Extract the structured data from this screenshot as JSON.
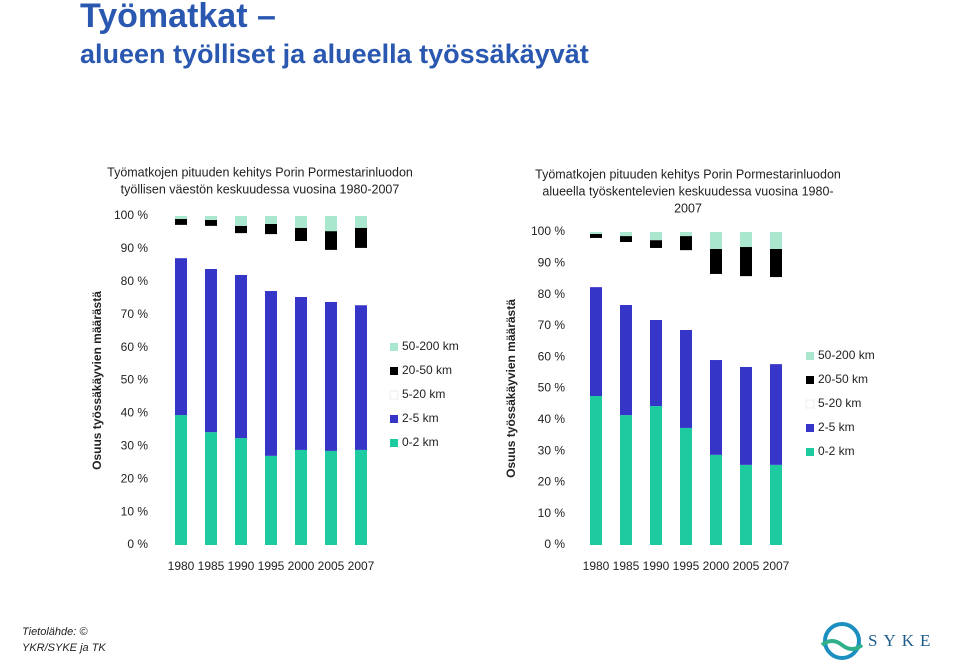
{
  "slide": {
    "title": [
      "Työmatkat –",
      "alueen työlliset ja alueella työssäkäyvät"
    ],
    "source": [
      "Tietolähde: ©",
      "YKR/SYKE ja TK"
    ],
    "logo": "SYKE"
  },
  "chart_data": [
    {
      "type": "stacked-bar",
      "title": [
        "Työmatkojen pituuden kehitys Porin Pormestarinluodon",
        "työllisen väestön keskuudessa vuosina 1980-2007"
      ],
      "y_label": "Osuus työssäkäyvien määrästä",
      "categories": [
        "1980",
        "1985",
        "1990",
        "1995",
        "2000",
        "2005",
        "2007"
      ],
      "ylim": [
        0,
        100
      ],
      "yticks": [
        {
          "value": 0,
          "label": "0 %"
        },
        {
          "value": 10,
          "label": "10 %"
        },
        {
          "value": 20,
          "label": "20 %"
        },
        {
          "value": 30,
          "label": "30 %"
        },
        {
          "value": 40,
          "label": "40 %"
        },
        {
          "value": 50,
          "label": "50 %"
        },
        {
          "value": 60,
          "label": "60 %"
        },
        {
          "value": 70,
          "label": "70 %"
        },
        {
          "value": 80,
          "label": "80 %"
        },
        {
          "value": 90,
          "label": "90 %"
        },
        {
          "value": 100,
          "label": "100 %"
        }
      ],
      "series": [
        {
          "name": "0-2 km",
          "color": "#1ecba0",
          "values": [
            39.5,
            34.3,
            32.5,
            27.1,
            28.9,
            28.6,
            28.9
          ]
        },
        {
          "name": "2-5 km",
          "color": "#3535c8",
          "values": [
            47.7,
            49.6,
            49.6,
            50.1,
            46.5,
            45.3,
            44.0
          ]
        },
        {
          "name": "5-20 km",
          "color": "#ffffff",
          "values": [
            10.1,
            13.1,
            12.7,
            17.3,
            17.0,
            15.8,
            17.4
          ]
        },
        {
          "name": "20-50 km",
          "color": "#000000",
          "values": [
            1.8,
            1.8,
            2.2,
            3.1,
            4.0,
            5.7,
            6.1
          ]
        },
        {
          "name": "50-200 km",
          "color": "#a9e7cf",
          "values": [
            0.9,
            1.2,
            3.0,
            2.4,
            3.6,
            4.6,
            3.6
          ]
        }
      ]
    },
    {
      "type": "stacked-bar",
      "title": [
        "Työmatkojen pituuden kehitys Porin Pormestarinluodon",
        "alueella työskentelevien keskuudessa vuosina 1980-",
        "2007"
      ],
      "y_label": "Osuus työssäkäyvien määrästä",
      "categories": [
        "1980",
        "1985",
        "1990",
        "1995",
        "2000",
        "2005",
        "2007"
      ],
      "ylim": [
        0,
        100
      ],
      "yticks": [
        {
          "value": 0,
          "label": "0 %"
        },
        {
          "value": 10,
          "label": "10 %"
        },
        {
          "value": 20,
          "label": "20 %"
        },
        {
          "value": 30,
          "label": "30 %"
        },
        {
          "value": 40,
          "label": "40 %"
        },
        {
          "value": 50,
          "label": "50 %"
        },
        {
          "value": 60,
          "label": "60 %"
        },
        {
          "value": 70,
          "label": "70 %"
        },
        {
          "value": 80,
          "label": "80 %"
        },
        {
          "value": 90,
          "label": "90 %"
        },
        {
          "value": 100,
          "label": "100 %"
        }
      ],
      "series": [
        {
          "name": "0-2 km",
          "color": "#1ecba0",
          "values": [
            47.6,
            41.5,
            44.4,
            37.4,
            28.8,
            25.6,
            25.6
          ]
        },
        {
          "name": "2-5 km",
          "color": "#3535c8",
          "values": [
            34.8,
            35.2,
            27.5,
            31.3,
            30.3,
            31.3,
            32.2
          ]
        },
        {
          "name": "5-20 km",
          "color": "#ffffff",
          "values": [
            15.7,
            20.1,
            23.0,
            25.5,
            27.5,
            29.0,
            27.8
          ]
        },
        {
          "name": "20-50 km",
          "color": "#000000",
          "values": [
            1.3,
            1.9,
            2.5,
            4.5,
            8.0,
            9.3,
            9.0
          ]
        },
        {
          "name": "50-200 km",
          "color": "#a9e7cf",
          "values": [
            0.6,
            1.3,
            2.6,
            1.3,
            5.4,
            4.8,
            5.4
          ]
        }
      ]
    }
  ]
}
